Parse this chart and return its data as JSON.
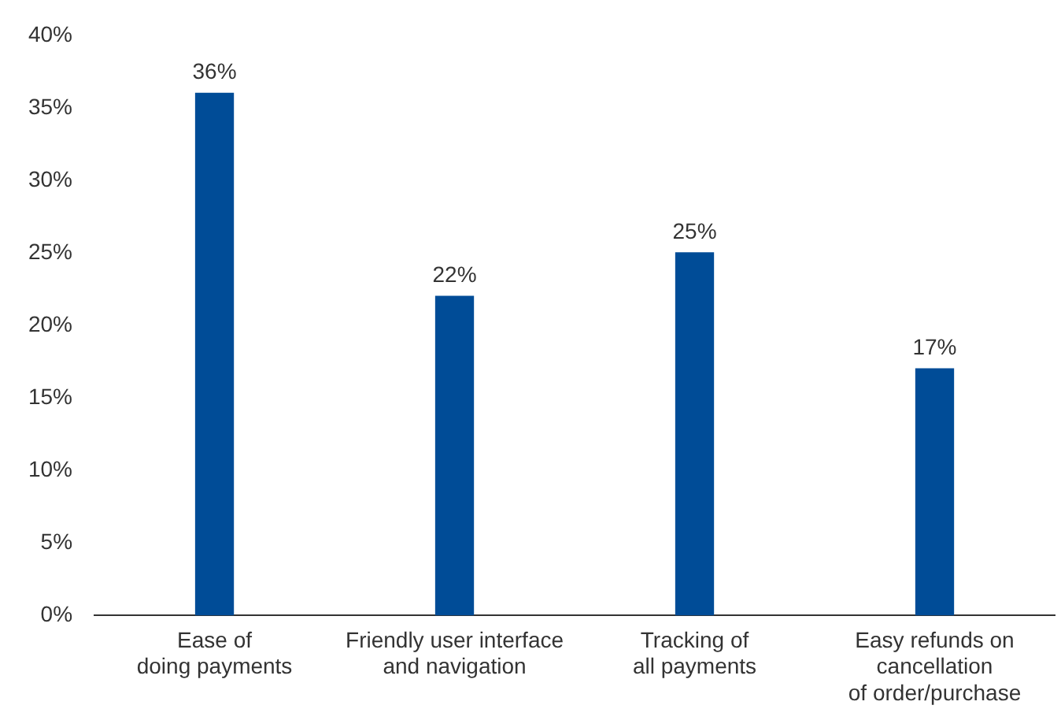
{
  "chart_data": {
    "type": "bar",
    "categories": [
      "Ease of\ndoing payments",
      "Friendly user interface\nand navigation",
      "Tracking of\nall payments",
      "Easy refunds on\ncancellation\nof order/purchase"
    ],
    "values": [
      36,
      22,
      25,
      17
    ],
    "value_labels": [
      "36%",
      "22%",
      "25%",
      "17%"
    ],
    "color": "#004c97",
    "grid": false,
    "legend": false,
    "ylim": [
      0,
      40
    ],
    "yticks": [
      {
        "value": 0,
        "label": "0%"
      },
      {
        "value": 5,
        "label": "5%"
      },
      {
        "value": 10,
        "label": "10%"
      },
      {
        "value": 15,
        "label": "15%"
      },
      {
        "value": 20,
        "label": "20%"
      },
      {
        "value": 25,
        "label": "25%"
      },
      {
        "value": 30,
        "label": "30%"
      },
      {
        "value": 35,
        "label": "35%"
      },
      {
        "value": 40,
        "label": "40%"
      }
    ]
  }
}
